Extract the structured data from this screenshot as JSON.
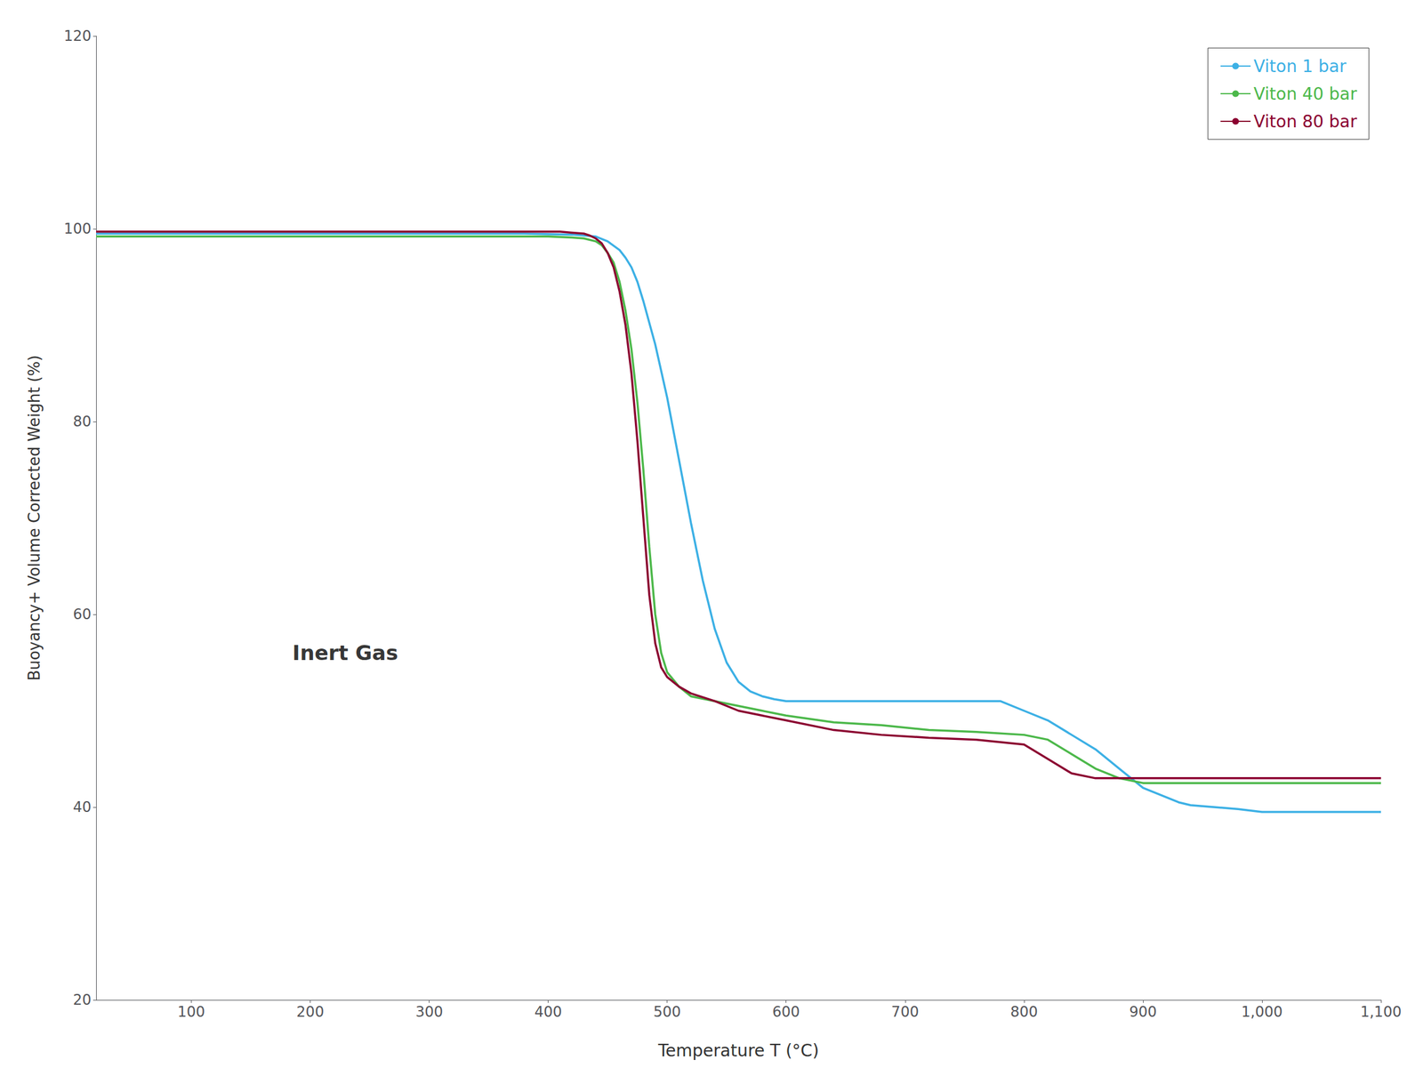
{
  "chart_data": {
    "type": "line",
    "xlabel": "Temperature T (°C)",
    "ylabel": "Buoyancy+ Volume Corrected Weight (%)",
    "xlim": [
      20,
      1100
    ],
    "ylim": [
      20,
      120
    ],
    "xticks": [
      100,
      200,
      300,
      400,
      500,
      600,
      700,
      800,
      900,
      1000,
      1100
    ],
    "yticks": [
      20,
      40,
      60,
      80,
      100,
      120
    ],
    "grid": false,
    "legend": "upper right",
    "annotations": [
      {
        "text": "Inert Gas",
        "x": 185,
        "y": 56
      }
    ],
    "series": [
      {
        "name": "Viton 1 bar",
        "color": "#3cb0e5",
        "x": [
          20,
          100,
          200,
          300,
          380,
          420,
          440,
          450,
          460,
          465,
          470,
          475,
          480,
          490,
          500,
          510,
          520,
          530,
          540,
          550,
          560,
          570,
          580,
          590,
          600,
          620,
          640,
          660,
          680,
          700,
          720,
          740,
          760,
          780,
          800,
          820,
          840,
          860,
          880,
          900,
          910,
          920,
          930,
          940,
          960,
          980,
          1000,
          1050,
          1100
        ],
        "values": [
          99.5,
          99.5,
          99.5,
          99.5,
          99.5,
          99.4,
          99.2,
          98.7,
          97.8,
          97.0,
          96.0,
          94.5,
          92.5,
          88.0,
          82.5,
          76.0,
          69.5,
          63.5,
          58.5,
          55.0,
          53.0,
          52.0,
          51.5,
          51.2,
          51.0,
          51.0,
          51.0,
          51.0,
          51.0,
          51.0,
          51.0,
          51.0,
          51.0,
          51.0,
          50.0,
          49.0,
          47.5,
          46.0,
          44.0,
          42.0,
          41.5,
          41.0,
          40.5,
          40.2,
          40.0,
          39.8,
          39.5,
          39.5,
          39.5
        ]
      },
      {
        "name": "Viton 40 bar",
        "color": "#4cb84a",
        "x": [
          20,
          100,
          200,
          300,
          380,
          400,
          420,
          430,
          440,
          445,
          450,
          455,
          460,
          465,
          470,
          475,
          480,
          485,
          490,
          495,
          500,
          510,
          520,
          540,
          560,
          580,
          600,
          640,
          680,
          720,
          760,
          800,
          820,
          840,
          860,
          880,
          900,
          920,
          950,
          980,
          1000,
          1050,
          1100
        ],
        "values": [
          99.2,
          99.2,
          99.2,
          99.2,
          99.2,
          99.2,
          99.1,
          99.0,
          98.7,
          98.3,
          97.5,
          96.5,
          94.5,
          91.5,
          87.5,
          82.0,
          75.0,
          67.0,
          60.0,
          56.0,
          54.0,
          52.5,
          51.5,
          51.0,
          50.5,
          50.0,
          49.5,
          48.8,
          48.5,
          48.0,
          47.8,
          47.5,
          47.0,
          45.5,
          44.0,
          43.0,
          42.5,
          42.5,
          42.5,
          42.5,
          42.5,
          42.5,
          42.5
        ]
      },
      {
        "name": "Viton 80 bar",
        "color": "#8b0030",
        "x": [
          20,
          100,
          200,
          300,
          380,
          400,
          410,
          420,
          430,
          435,
          440,
          445,
          450,
          455,
          460,
          465,
          470,
          475,
          480,
          485,
          490,
          495,
          500,
          510,
          520,
          540,
          560,
          580,
          600,
          640,
          680,
          720,
          760,
          800,
          820,
          840,
          860,
          880,
          900,
          920,
          950,
          980,
          1000,
          1050,
          1100
        ],
        "values": [
          99.7,
          99.7,
          99.7,
          99.7,
          99.7,
          99.7,
          99.7,
          99.6,
          99.5,
          99.3,
          99.0,
          98.5,
          97.5,
          96.0,
          93.5,
          90.0,
          85.0,
          78.0,
          70.0,
          62.0,
          57.0,
          54.5,
          53.5,
          52.5,
          51.8,
          51.0,
          50.0,
          49.5,
          49.0,
          48.0,
          47.5,
          47.2,
          47.0,
          46.5,
          45.0,
          43.5,
          43.0,
          43.0,
          43.0,
          43.0,
          43.0,
          43.0,
          43.0,
          43.0,
          43.0
        ]
      }
    ]
  }
}
